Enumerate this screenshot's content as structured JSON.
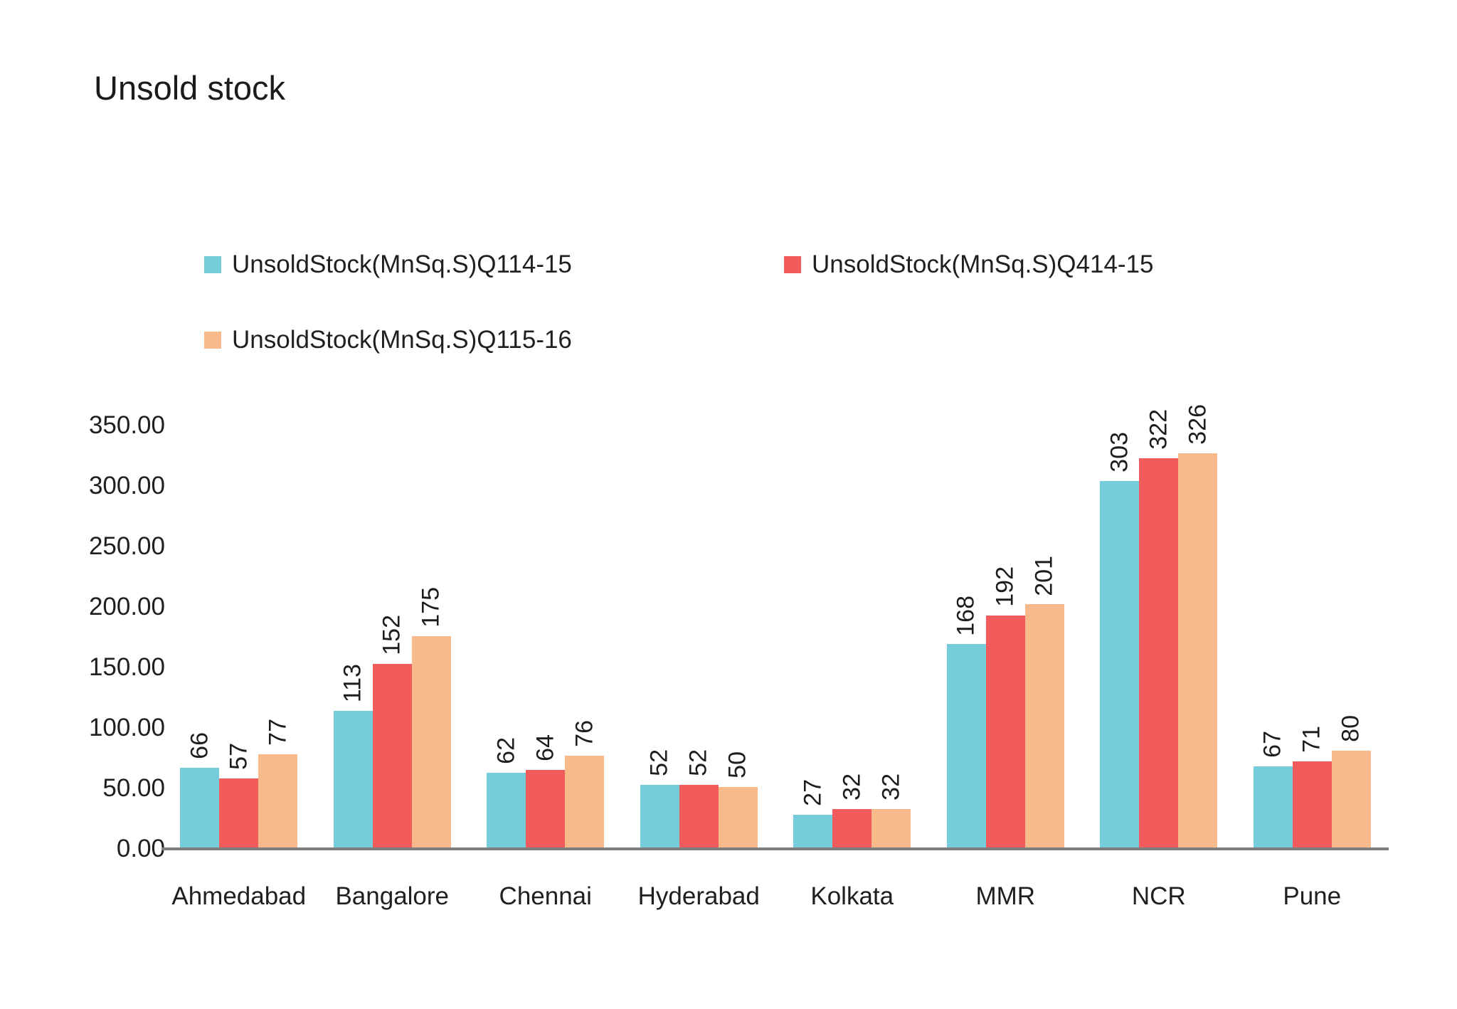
{
  "chart": {
    "title": "Unsold stock"
  },
  "chart_data": {
    "type": "bar",
    "title": "Unsold stock",
    "categories": [
      "Ahmedabad",
      "Bangalore",
      "Chennai",
      "Hyderabad",
      "Kolkata",
      "MMR",
      "NCR",
      "Pune"
    ],
    "series": [
      {
        "name": "UnsoldStock(MnSq.S)Q114-15",
        "color": "#75CDDB",
        "values": [
          66,
          113,
          62,
          52,
          27,
          168,
          303,
          67
        ]
      },
      {
        "name": "UnsoldStock(MnSq.S)Q414-15",
        "color": "#F15B5B",
        "values": [
          57,
          152,
          64,
          52,
          32,
          192,
          322,
          71
        ]
      },
      {
        "name": "UnsoldStock(MnSq.S)Q115-16",
        "color": "#F9BA8B",
        "values": [
          77,
          175,
          76,
          50,
          32,
          201,
          326,
          80
        ]
      }
    ],
    "data_labels": {
      "shown": true,
      "rotation_deg": -90
    },
    "xlabel": "",
    "ylabel": "",
    "y_axis": {
      "min": 0,
      "max": 350,
      "step": 50,
      "ticks": [
        "0.00",
        "50.00",
        "100.00",
        "150.00",
        "200.00",
        "250.00",
        "300.00",
        "350.00"
      ]
    },
    "grid": false,
    "legend_position": "top-left, two columns",
    "colors": {
      "axis_line": "#7f7f7f",
      "text": "#1f1f1f",
      "background": "#ffffff"
    }
  }
}
